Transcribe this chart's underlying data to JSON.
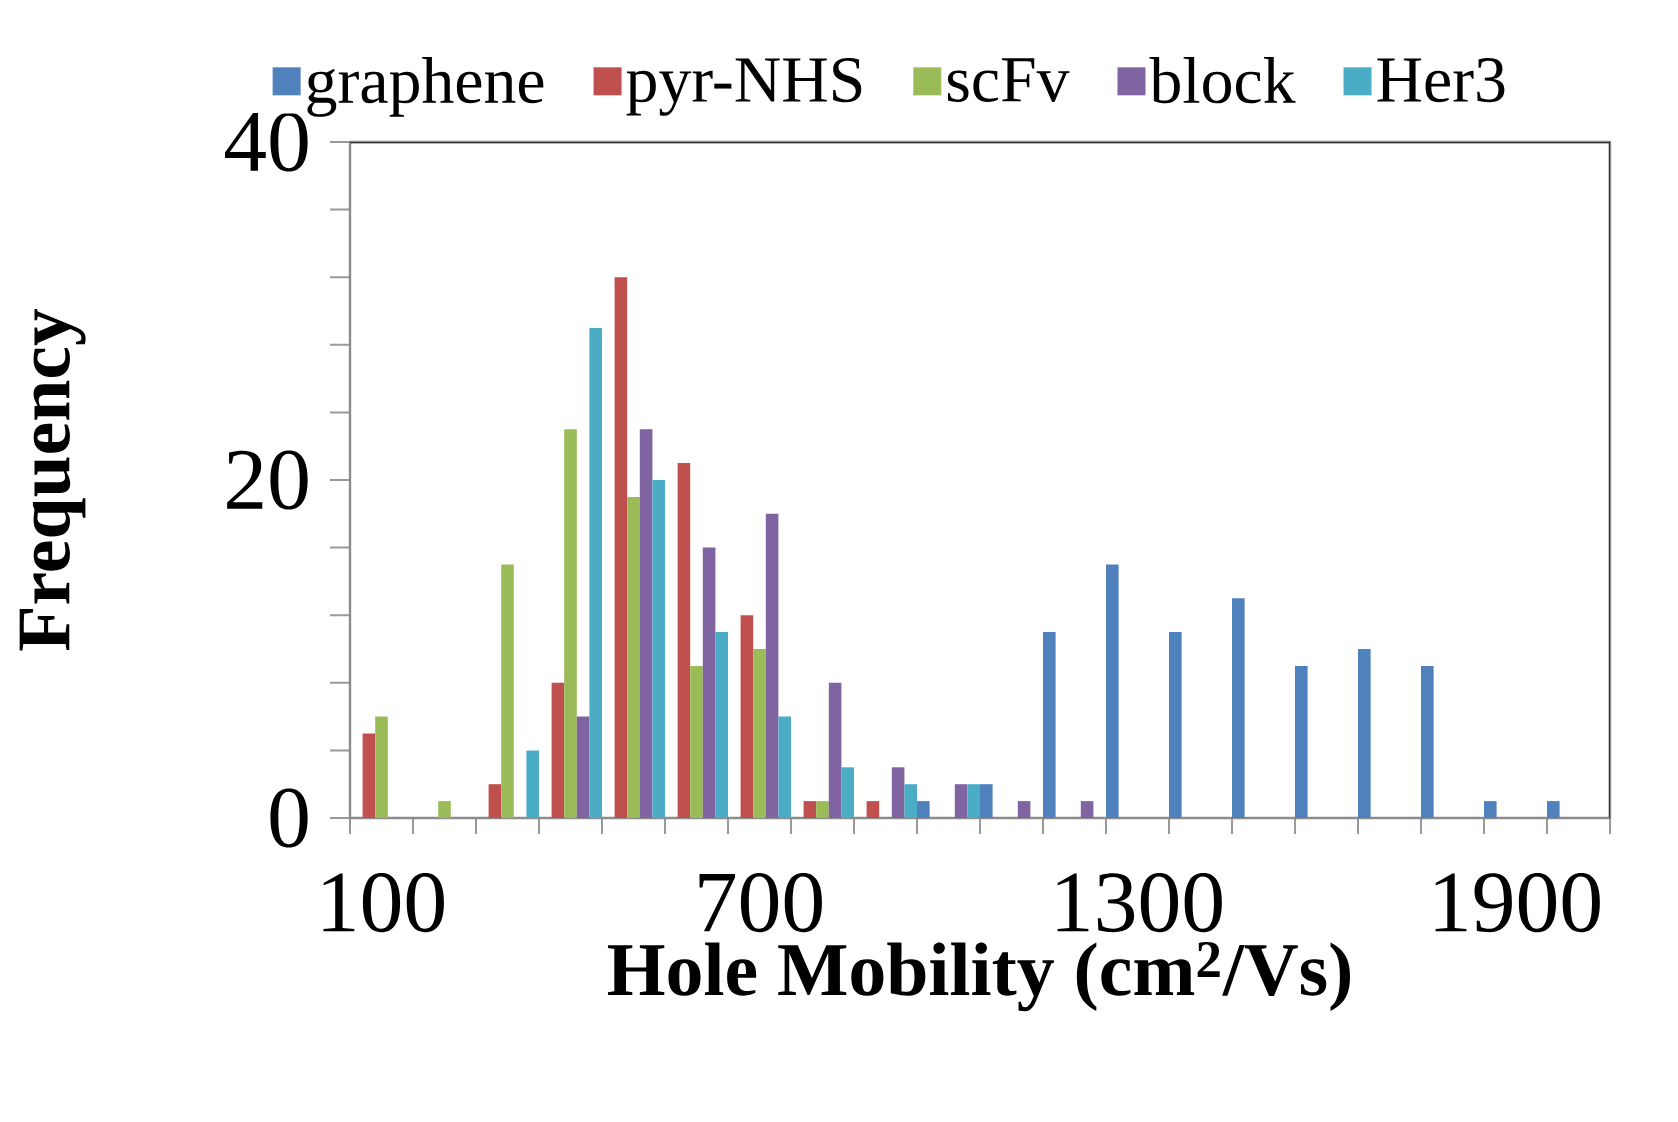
{
  "chart_data": {
    "type": "bar",
    "xlabel": "Hole Mobility (cm$^{2}$/Vs)",
    "ylabel": "Frequency",
    "categories": [
      "100",
      null,
      null,
      null,
      null,
      null,
      "700",
      null,
      null,
      null,
      null,
      null,
      "1300",
      null,
      null,
      null,
      null,
      null,
      "1900",
      null
    ],
    "series": [
      {
        "name": "graphene",
        "color": "#4f81bd",
        "values": [
          0,
          0,
          0,
          0,
          0,
          0,
          0,
          0,
          0,
          1,
          2,
          11,
          15,
          11,
          13,
          9,
          10,
          9,
          1,
          1
        ]
      },
      {
        "name": "pyr-NHS",
        "color": "#c0504d",
        "values": [
          5,
          0,
          2,
          8,
          32,
          21,
          12,
          1,
          1,
          0,
          0,
          0,
          0,
          0,
          0,
          0,
          0,
          0,
          0,
          0
        ]
      },
      {
        "name": "scFv",
        "color": "#9bbb59",
        "values": [
          6,
          1,
          15,
          23,
          19,
          9,
          10,
          1,
          0,
          0,
          0,
          0,
          0,
          0,
          0,
          0,
          0,
          0,
          0,
          0
        ]
      },
      {
        "name": "block",
        "color": "#8064a2",
        "values": [
          0,
          0,
          0,
          6,
          23,
          16,
          18,
          8,
          3,
          2,
          1,
          1,
          0,
          0,
          0,
          0,
          0,
          0,
          0,
          0
        ]
      },
      {
        "name": "Her3",
        "color": "#4bacc6",
        "values": [
          0,
          0,
          4,
          29,
          20,
          11,
          6,
          3,
          2,
          2,
          0,
          0,
          0,
          0,
          0,
          0,
          0,
          0,
          0,
          0
        ]
      }
    ],
    "ylim": [
      0,
      40
    ],
    "yticks": [
      0,
      {
        "value": 4,
        "label": null
      },
      {
        "value": 8,
        "label": null
      },
      {
        "value": 12,
        "label": null
      },
      {
        "value": 16,
        "label": null
      },
      20,
      {
        "value": 24,
        "label": null
      },
      {
        "value": 28,
        "label": null
      },
      {
        "value": 32,
        "label": null
      },
      {
        "value": 36,
        "label": null
      },
      40
    ],
    "legend": "top"
  }
}
